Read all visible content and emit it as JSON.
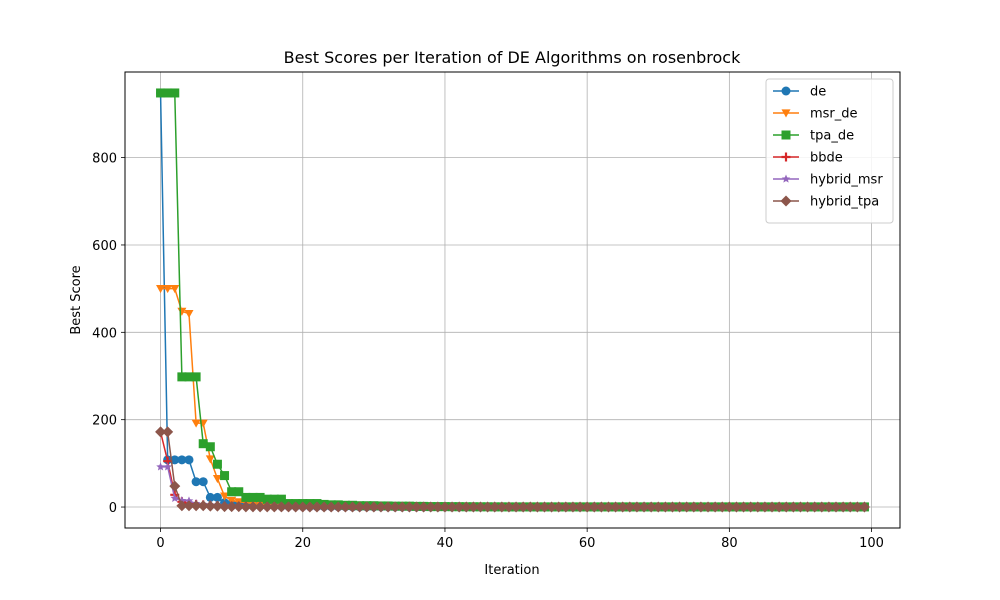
{
  "chart_data": {
    "type": "line",
    "title": "Best Scores per Iteration of DE Algorithms on rosenbrock",
    "xlabel": "Iteration",
    "ylabel": "Best Score",
    "xlim": [
      -5,
      104
    ],
    "ylim": [
      -48,
      996
    ],
    "xticks": [
      0,
      20,
      40,
      60,
      80,
      100
    ],
    "yticks": [
      0,
      200,
      400,
      600,
      800
    ],
    "grid": true,
    "legend_position": "top-right",
    "series": [
      {
        "name": "de",
        "color": "#1f77b4",
        "marker": "circle",
        "values": [
          948,
          108,
          108,
          108,
          108,
          58,
          58,
          22,
          22,
          10,
          8,
          6,
          5,
          4,
          4,
          3,
          3,
          2,
          2,
          2,
          1.5,
          1.5,
          1,
          1,
          1,
          0.8,
          0.8,
          0.6,
          0.6,
          0.5,
          0.5,
          0.4,
          0.4,
          0.3,
          0.3,
          0.3,
          0.2,
          0.2,
          0.2,
          0.2,
          0.1
        ]
      },
      {
        "name": "msr_de",
        "color": "#ff7f0e",
        "marker": "triangle-down",
        "values": [
          500,
          500,
          500,
          448,
          443,
          192,
          192,
          110,
          65,
          25,
          15,
          12,
          10,
          8,
          6,
          5,
          5,
          4,
          3,
          3,
          2,
          2,
          2,
          1.5,
          1.5,
          1,
          1,
          0.8,
          0.8,
          0.6,
          0.5,
          0.5,
          0.4,
          0.4,
          0.3,
          0.3,
          0.2,
          0.2,
          0.2,
          0.2,
          0.1
        ]
      },
      {
        "name": "tpa_de",
        "color": "#2ca02c",
        "marker": "square",
        "values": [
          948,
          948,
          948,
          298,
          298,
          298,
          145,
          138,
          98,
          72,
          35,
          35,
          22,
          22,
          22,
          18,
          18,
          18,
          8,
          8,
          8,
          8,
          8,
          6,
          5,
          5,
          4,
          4,
          3,
          3,
          3,
          2.5,
          2.5,
          2,
          2,
          2,
          1.5,
          1.5,
          1,
          1,
          1,
          0.8,
          0.8,
          0.6,
          0.6,
          0.5,
          0.5,
          0.4,
          0.4,
          0.3
        ]
      },
      {
        "name": "bbde",
        "color": "#d62728",
        "marker": "plus",
        "values": [
          172,
          105,
          28,
          12,
          8,
          6,
          5,
          4,
          3,
          2,
          2,
          1.5,
          1.5,
          1,
          1,
          0.8,
          0.6,
          0.5,
          0.4,
          0.3,
          0.2
        ]
      },
      {
        "name": "hybrid_msr",
        "color": "#9467bd",
        "marker": "star",
        "values": [
          92,
          92,
          20,
          15,
          14,
          8,
          6,
          5,
          4,
          3,
          2,
          2,
          1.5,
          1,
          1,
          0.8,
          0.6,
          0.5,
          0.4,
          0.3,
          0.2
        ]
      },
      {
        "name": "hybrid_tpa",
        "color": "#8c564b",
        "marker": "diamond",
        "values": [
          172,
          172,
          48,
          3,
          3,
          3,
          3,
          2,
          2,
          1,
          1,
          1,
          0.5,
          0.5,
          0.5,
          0.5,
          0.3,
          0.3,
          0.3,
          0.2,
          0.2
        ]
      }
    ]
  }
}
